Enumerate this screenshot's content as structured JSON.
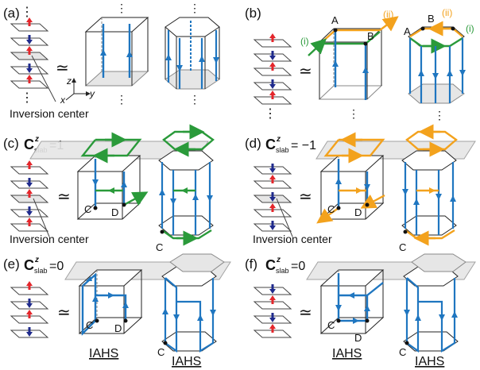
{
  "colors": {
    "blue": "#1f76c0",
    "green": "#2a9a3a",
    "orange": "#f3a21d",
    "red_arrow": "#e3262b",
    "navy_arrow": "#1f2a8c",
    "plane_fill": "#e6e6e6",
    "plane_edge": "#8c8c8c",
    "line": "#222222"
  },
  "labels": {
    "panel_a": "(a)",
    "panel_b": "(b)",
    "panel_c": "(c)",
    "panel_d": "(d)",
    "panel_e": "(e)",
    "panel_f": "(f)",
    "approx": "≃",
    "axis_z": "z",
    "axis_x": "x",
    "axis_y": "y",
    "inversion_center": "Inversion center",
    "c_symbol": "C",
    "c_sup": "z",
    "c_sub": "slab",
    "c_value_c": "=1",
    "c_value_d": "= −1",
    "c_value_e": "=0",
    "c_value_f": "=0",
    "node_A": "A",
    "node_B": "B",
    "node_C": "C",
    "node_D": "D",
    "mode_i": "(i)",
    "mode_ii": "(ii)",
    "iahs": "IAHS",
    "dots": "⋮"
  }
}
